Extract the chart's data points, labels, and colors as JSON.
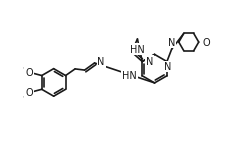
{
  "bg": "#ffffff",
  "lc": "#1a1a1a",
  "lw": 1.2,
  "fs": 7.0,
  "fw": 3.13,
  "fh": 1.85,
  "dpi": 100,
  "xl": [
    0,
    10
  ],
  "yl": [
    0,
    6
  ]
}
